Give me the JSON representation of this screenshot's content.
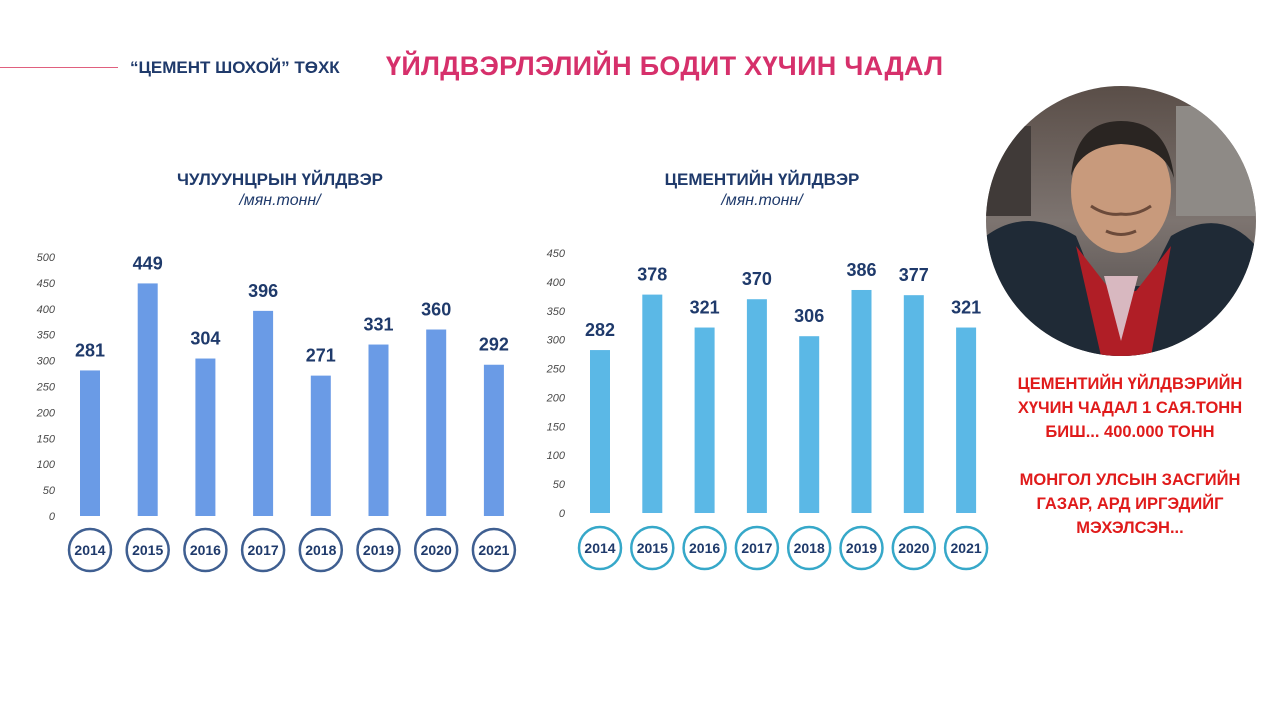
{
  "header": {
    "company": "“ЦЕМЕНТ ШОХОЙ” ТӨХК",
    "title": "ҮЙЛДВЭРЛЭЛИЙН БОДИТ ХҮЧИН ЧАДАЛ"
  },
  "colors": {
    "accent": "#d6306b",
    "navy": "#1f3a6b",
    "bar_left": "#6a9be6",
    "bar_right": "#5bb8e6",
    "ring_left": "#3f5f91",
    "ring_right": "#36a8c9",
    "statement": "#e01b1b"
  },
  "photo": {
    "icon": "person-portrait-icon"
  },
  "statement": {
    "line1": "ЦЕМЕНТИЙН ҮЙЛДВЭРИЙН ХҮЧИН ЧАДАЛ 1 САЯ.ТОНН БИШ... 400.000 ТОНН",
    "line2": "МОНГОЛ УЛСЫН ЗАСГИЙН ГАЗАР, АРД ИРГЭДИЙГ МЭХЭЛСЭН..."
  },
  "chart_data": [
    {
      "type": "bar",
      "title": "ЧУЛУУНЦРЫН ҮЙЛДВЭР",
      "ylabel": "/мян.тонн/",
      "categories": [
        "2014",
        "2015",
        "2016",
        "2017",
        "2018",
        "2019",
        "2020",
        "2021"
      ],
      "values": [
        281,
        449,
        304,
        396,
        271,
        331,
        360,
        292
      ],
      "ylim": [
        0,
        500
      ],
      "yticks": [
        0,
        50,
        100,
        150,
        200,
        250,
        300,
        350,
        400,
        450,
        500
      ],
      "grid": false
    },
    {
      "type": "bar",
      "title": "ЦЕМЕНТИЙН ҮЙЛДВЭР",
      "ylabel": "/мян.тонн/",
      "categories": [
        "2014",
        "2015",
        "2016",
        "2017",
        "2018",
        "2019",
        "2020",
        "2021"
      ],
      "values": [
        282,
        378,
        321,
        370,
        306,
        386,
        377,
        321
      ],
      "ylim": [
        0,
        450
      ],
      "yticks": [
        0,
        50,
        100,
        150,
        200,
        250,
        300,
        350,
        400,
        450
      ],
      "grid": false
    }
  ]
}
